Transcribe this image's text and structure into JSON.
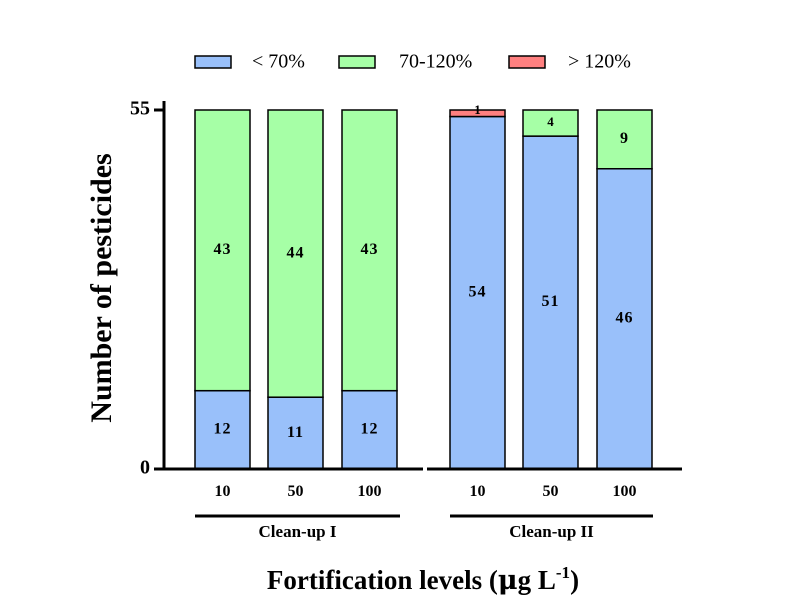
{
  "chart_data": {
    "type": "bar",
    "stacked": true,
    "title": "",
    "ylabel": "Number of pesticides",
    "xlabel_main": "Fortification levels (",
    "xlabel_mu": "μ",
    "xlabel_unit": "g L",
    "xlabel_sup": "-1",
    "xlabel_close": ")",
    "ylim": [
      0,
      55
    ],
    "yticks": [
      0,
      55
    ],
    "groups": [
      {
        "name": "Clean-up I",
        "categories": [
          "10",
          "50",
          "100"
        ]
      },
      {
        "name": "Clean-up II",
        "categories": [
          "10",
          "50",
          "100"
        ]
      }
    ],
    "categories": [
      "10",
      "50",
      "100",
      "10",
      "50",
      "100"
    ],
    "series": [
      {
        "name": "< 70%",
        "color": "#99c0fa",
        "values": [
          12,
          11,
          12,
          54,
          51,
          46
        ]
      },
      {
        "name": "70-120%",
        "color": "#a6ffa6",
        "values": [
          43,
          44,
          43,
          0,
          4,
          9
        ]
      },
      {
        "name": "> 120%",
        "color": "#ff8080",
        "values": [
          0,
          0,
          0,
          1,
          0,
          0
        ]
      }
    ],
    "legend_position": "top"
  }
}
